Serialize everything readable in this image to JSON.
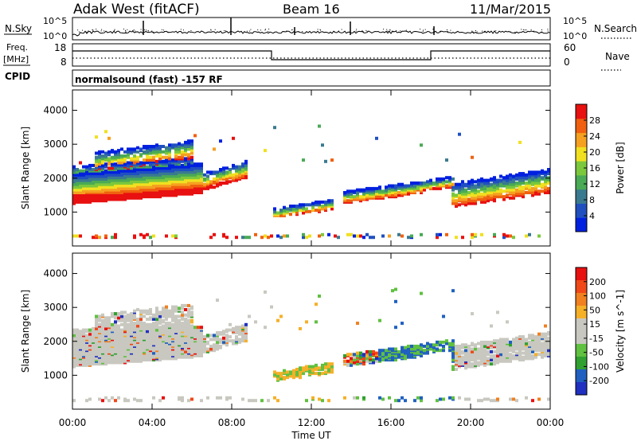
{
  "header": {
    "station": "Adak West (fitACF)",
    "beam": "Beam 16",
    "date": "11/Mar/2015"
  },
  "panels": {
    "noise": {
      "left_label": "N.Sky",
      "right_label": "N.Search",
      "left_ticks": [
        "10^5",
        "10^0"
      ],
      "right_ticks": [
        "10^5",
        "10^0"
      ]
    },
    "freq": {
      "left_label_1": "Freq.",
      "left_label_2": "[MHz]",
      "right_label": "Nave",
      "left_ticks": [
        "18",
        "8"
      ],
      "right_ticks": [
        "60",
        "0"
      ]
    },
    "cpid": {
      "label": "CPID",
      "text": "normalsound (fast)  -157 RF"
    }
  },
  "colors": {
    "power_scale": [
      "#0020e0",
      "#2050c0",
      "#3a7a90",
      "#4aaa55",
      "#7cc83c",
      "#f0e020",
      "#f5a020",
      "#f06010",
      "#e81010"
    ],
    "velocity_scale": [
      "#e81010",
      "#f04818",
      "#f08020",
      "#f5b028",
      "#c8c8c0",
      "#c8c8c0",
      "#60c040",
      "#30a030",
      "#2060c0",
      "#2030c0"
    ]
  },
  "chart_data": [
    {
      "type": "heatmap",
      "name": "power",
      "ylabel": "Slant Range [km]",
      "yticks": [
        "1000",
        "2000",
        "3000",
        "4000"
      ],
      "ylim": [
        0,
        4600
      ],
      "colorbar_label": "Power [dB]",
      "colorbar_ticks": [
        "4",
        "8",
        "12",
        "16",
        "20",
        "24",
        "28"
      ],
      "clim": [
        0,
        32
      ]
    },
    {
      "type": "heatmap",
      "name": "velocity",
      "ylabel": "Slant Range [km]",
      "yticks": [
        "1000",
        "2000",
        "3000",
        "4000"
      ],
      "ylim": [
        0,
        4600
      ],
      "colorbar_label": "Velocity [m s^-1]",
      "colorbar_ticks": [
        "200",
        "100",
        "50",
        "15",
        "-15",
        "-50",
        "-100",
        "-200"
      ],
      "clim": [
        -250,
        250
      ]
    }
  ],
  "xaxis": {
    "label": "Time UT",
    "ticks": [
      "00:00",
      "04:00",
      "08:00",
      "12:00",
      "16:00",
      "20:00",
      "00:00"
    ],
    "xlim": [
      0,
      24
    ]
  }
}
